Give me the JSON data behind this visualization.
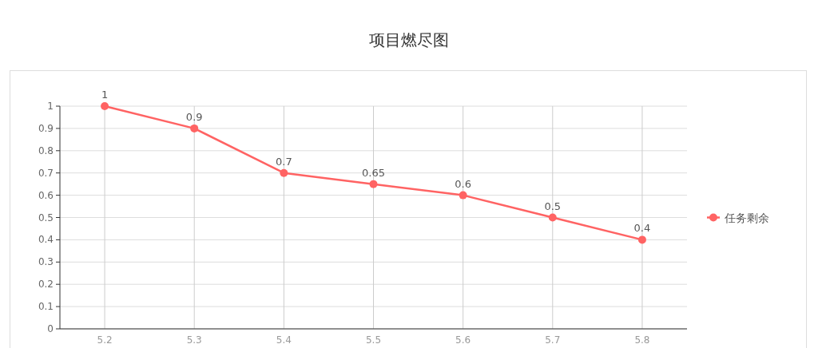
{
  "chart_data": {
    "type": "line",
    "title": "项目燃尽图",
    "categories": [
      "5.2",
      "5.3",
      "5.4",
      "5.5",
      "5.6",
      "5.7",
      "5.8"
    ],
    "series": [
      {
        "name": "任务剩余",
        "color": "#ff6363",
        "values": [
          1,
          0.9,
          0.7,
          0.65,
          0.6,
          0.5,
          0.4
        ]
      }
    ],
    "ylim": [
      0,
      1
    ],
    "yticks": [
      0,
      0.1,
      0.2,
      0.3,
      0.4,
      0.5,
      0.6,
      0.7,
      0.8,
      0.9,
      1
    ],
    "grid": true,
    "legend": "right",
    "data_labels": true,
    "marker": "circle",
    "line_style": "solid"
  }
}
